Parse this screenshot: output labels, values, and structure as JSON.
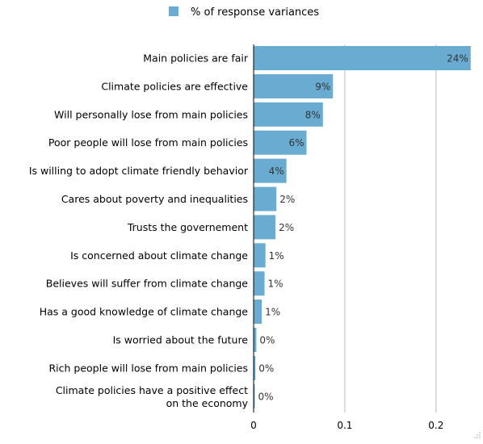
{
  "chart_data": {
    "type": "bar",
    "orientation": "horizontal",
    "legend": {
      "label": "% of response variances",
      "placement": "top-center"
    },
    "series": [
      {
        "name": "% of response variances",
        "color": "#6aabd2"
      }
    ],
    "categories": [
      "Main policies are fair",
      "Climate policies are effective",
      "Will personally lose from main policies",
      "Poor people will lose from main policies",
      "Is willing to adopt climate friendly behavior",
      "Cares about poverty and inequalities",
      "Trusts the governement",
      "Is concerned about climate change",
      "Believes will suffer from climate change",
      "Has a good knowledge of climate change",
      "Is worried about the future",
      "Rich people will lose from main policies",
      "Climate policies have a positive effect on the economy"
    ],
    "category_lines": [
      [
        "Main policies are fair"
      ],
      [
        "Climate policies are effective"
      ],
      [
        "Will personally lose from main policies"
      ],
      [
        "Poor people will lose from main policies"
      ],
      [
        "Is willing to adopt climate friendly behavior"
      ],
      [
        "Cares about poverty and inequalities"
      ],
      [
        "Trusts the governement"
      ],
      [
        "Is concerned about climate change"
      ],
      [
        "Believes will suffer from climate change"
      ],
      [
        "Has a good knowledge of climate change"
      ],
      [
        "Is worried about the future"
      ],
      [
        "Rich people will lose from main policies"
      ],
      [
        "Climate policies have a positive effect",
        "on the economy"
      ]
    ],
    "values": [
      0.238,
      0.087,
      0.076,
      0.058,
      0.036,
      0.025,
      0.024,
      0.013,
      0.012,
      0.009,
      0.003,
      0.002,
      0.001
    ],
    "value_labels": [
      "24%",
      "9%",
      "8%",
      "6%",
      "4%",
      "2%",
      "2%",
      "1%",
      "1%",
      "1%",
      "0%",
      "0%",
      "0%"
    ],
    "xaxis": {
      "ticks": [
        0,
        0.1,
        0.2
      ],
      "tick_labels": [
        "0",
        "0.1",
        "0.2"
      ],
      "range": [
        0,
        0.24
      ]
    },
    "grid": "vertical",
    "xlabel": "",
    "ylabel": ""
  }
}
